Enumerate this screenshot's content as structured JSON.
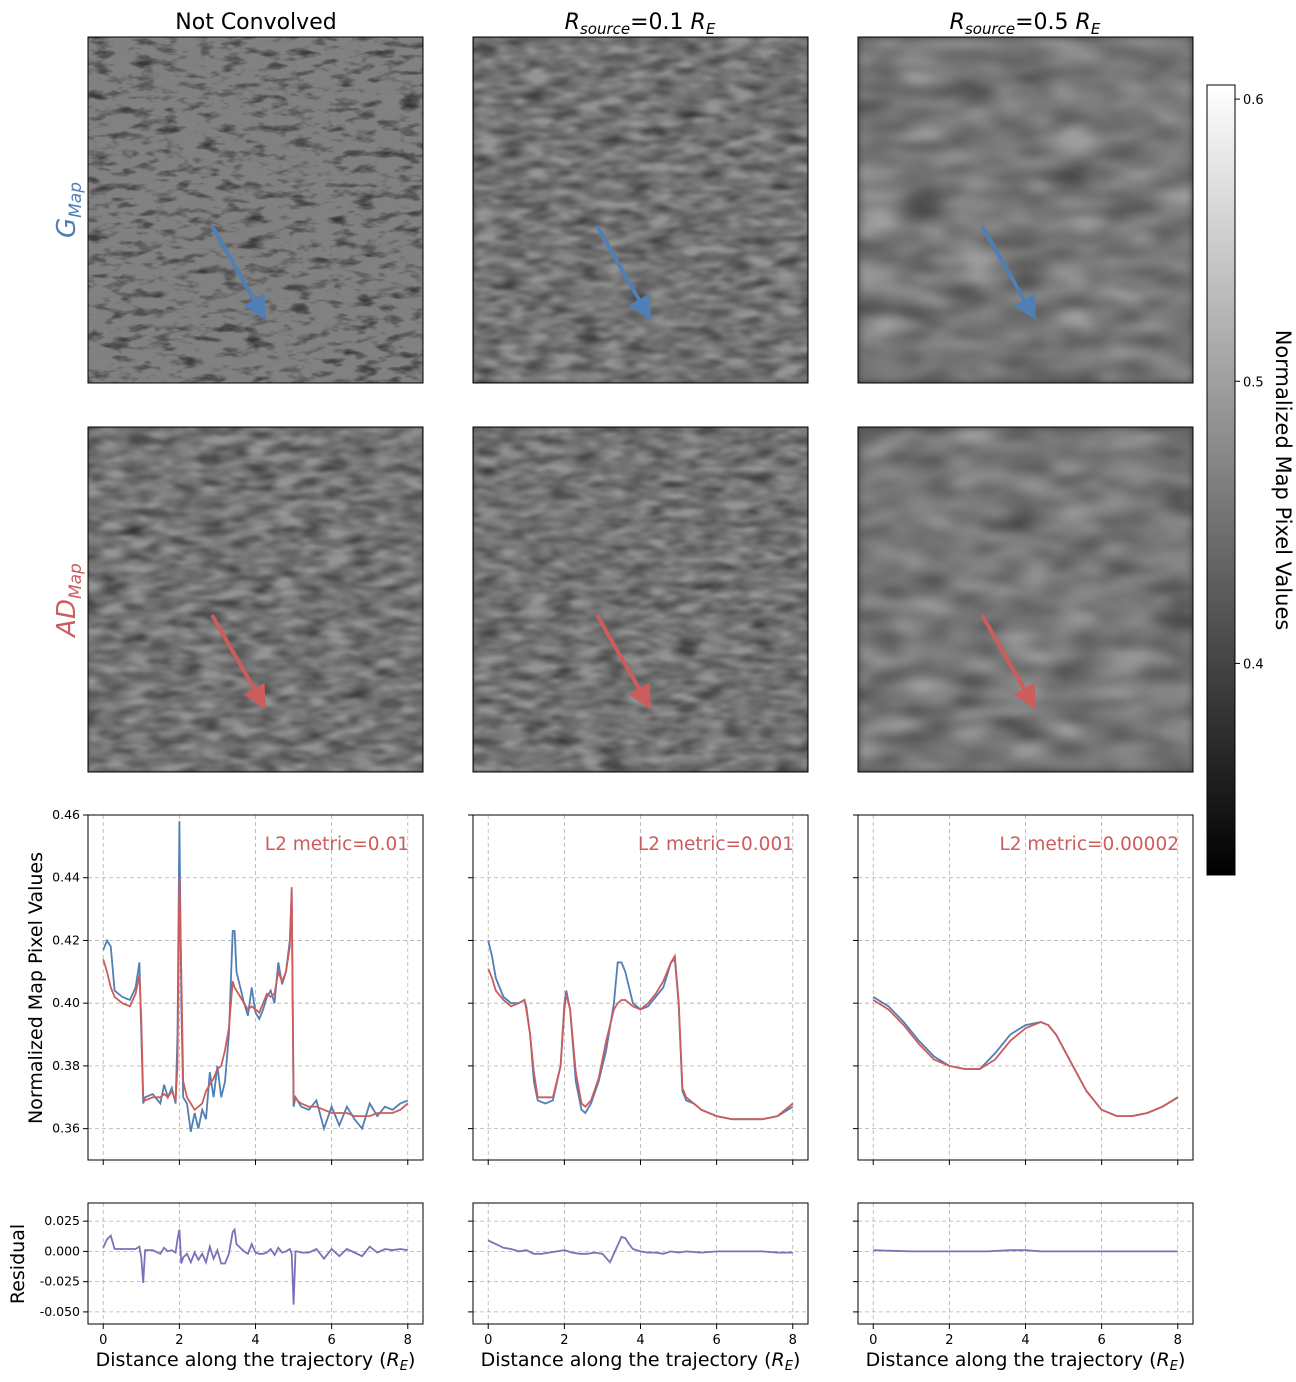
{
  "columns": [
    {
      "title": "Not Convolved",
      "title_math": null
    },
    {
      "title": "",
      "title_math": {
        "base": "R",
        "sub": "source",
        "mid": "=0.1 ",
        "base2": "R",
        "sub2": "E"
      }
    },
    {
      "title": "",
      "title_math": {
        "base": "R",
        "sub": "source",
        "mid": "=0.5 ",
        "base2": "R",
        "sub2": "E"
      }
    }
  ],
  "row_labels": {
    "g_map": {
      "base": "G",
      "sub": "Map",
      "color": "#4f7fb5"
    },
    "ad_map": {
      "base": "AD",
      "sub": "Map",
      "color": "#cd5c5c"
    }
  },
  "colorbar": {
    "label": "Normalized Map Pixel Values",
    "ticks": [
      "0.6",
      "0.5",
      "0.4"
    ],
    "tick_values": [
      0.6,
      0.5,
      0.4
    ],
    "range": [
      0.325,
      0.605
    ]
  },
  "colors": {
    "g_series": "#4f7fb5",
    "ad_series": "#cd5c5c",
    "residual": "#7a72b8",
    "annotation": "#cd5c5c"
  },
  "annotations": [
    "L2 metric=0.01",
    "L2 metric=0.001",
    "L2 metric=0.00002"
  ],
  "axes": {
    "main_ylabel": "Normalized Map Pixel Values",
    "residual_ylabel": "Residual",
    "xlabel_prefix": "Distance along the trajectory (",
    "xlabel_math": {
      "base": "R",
      "sub": "E"
    },
    "xlabel_suffix": ")",
    "main_yticks": [
      "0.46",
      "0.44",
      "0.42",
      "0.40",
      "0.38",
      "0.36"
    ],
    "residual_yticks": [
      "0.025",
      "0.000",
      "-0.025",
      "-0.050"
    ],
    "xticks": [
      "0",
      "2",
      "4",
      "6",
      "8"
    ]
  },
  "chart_data": [
    {
      "type": "line",
      "panel": "Not Convolved",
      "xlim": [
        -0.4,
        8.4
      ],
      "ylim": [
        0.35,
        0.46
      ],
      "grid": true,
      "series": [
        {
          "x": [
            0,
            0.1,
            0.2,
            0.3,
            0.5,
            0.7,
            0.85,
            0.95,
            1.0,
            1.05,
            1.1,
            1.3,
            1.5,
            1.6,
            1.7,
            1.8,
            1.9,
            1.95,
            2.0,
            2.05,
            2.1,
            2.2,
            2.3,
            2.4,
            2.5,
            2.6,
            2.7,
            2.8,
            2.9,
            3.0,
            3.1,
            3.2,
            3.3,
            3.4,
            3.45,
            3.5,
            3.6,
            3.7,
            3.8,
            3.9,
            4.0,
            4.1,
            4.2,
            4.3,
            4.4,
            4.5,
            4.6,
            4.7,
            4.8,
            4.9,
            4.95,
            5.0,
            5.05,
            5.1,
            5.2,
            5.4,
            5.6,
            5.8,
            6.0,
            6.2,
            6.4,
            6.6,
            6.8,
            7.0,
            7.2,
            7.4,
            7.6,
            7.8,
            8.0
          ],
          "values": [
            0.417,
            0.42,
            0.418,
            0.404,
            0.402,
            0.401,
            0.405,
            0.413,
            0.39,
            0.368,
            0.37,
            0.371,
            0.368,
            0.374,
            0.37,
            0.373,
            0.368,
            0.39,
            0.458,
            0.4,
            0.37,
            0.368,
            0.359,
            0.365,
            0.36,
            0.366,
            0.363,
            0.378,
            0.37,
            0.38,
            0.37,
            0.375,
            0.39,
            0.423,
            0.423,
            0.41,
            0.405,
            0.4,
            0.396,
            0.405,
            0.397,
            0.395,
            0.398,
            0.402,
            0.404,
            0.4,
            0.413,
            0.406,
            0.41,
            0.42,
            0.435,
            0.367,
            0.37,
            0.369,
            0.367,
            0.366,
            0.369,
            0.36,
            0.367,
            0.361,
            0.367,
            0.363,
            0.36,
            0.368,
            0.364,
            0.367,
            0.366,
            0.368,
            0.369
          ]
        },
        {
          "x": [
            0,
            0.1,
            0.2,
            0.3,
            0.5,
            0.7,
            0.85,
            0.95,
            1.0,
            1.05,
            1.1,
            1.3,
            1.5,
            1.6,
            1.7,
            1.8,
            1.9,
            1.95,
            2.0,
            2.05,
            2.1,
            2.2,
            2.3,
            2.4,
            2.5,
            2.6,
            2.7,
            2.8,
            2.9,
            3.0,
            3.1,
            3.2,
            3.3,
            3.4,
            3.45,
            3.5,
            3.6,
            3.7,
            3.8,
            3.9,
            4.0,
            4.1,
            4.2,
            4.3,
            4.4,
            4.5,
            4.6,
            4.7,
            4.8,
            4.9,
            4.95,
            5.0,
            5.05,
            5.1,
            5.2,
            5.4,
            5.6,
            5.8,
            6.0,
            6.2,
            6.4,
            6.6,
            6.8,
            7.0,
            7.2,
            7.4,
            7.6,
            7.8,
            8.0
          ],
          "values": [
            0.414,
            0.41,
            0.405,
            0.402,
            0.4,
            0.399,
            0.403,
            0.409,
            0.395,
            0.37,
            0.369,
            0.37,
            0.37,
            0.371,
            0.37,
            0.372,
            0.369,
            0.38,
            0.44,
            0.41,
            0.375,
            0.37,
            0.368,
            0.366,
            0.367,
            0.368,
            0.372,
            0.374,
            0.376,
            0.379,
            0.38,
            0.385,
            0.392,
            0.407,
            0.405,
            0.404,
            0.402,
            0.4,
            0.398,
            0.399,
            0.398,
            0.397,
            0.4,
            0.403,
            0.402,
            0.403,
            0.41,
            0.407,
            0.41,
            0.418,
            0.437,
            0.369,
            0.37,
            0.369,
            0.368,
            0.367,
            0.367,
            0.366,
            0.365,
            0.365,
            0.365,
            0.364,
            0.364,
            0.364,
            0.365,
            0.365,
            0.365,
            0.366,
            0.368
          ]
        }
      ],
      "residual": {
        "ylim": [
          -0.06,
          0.04
        ],
        "x": [
          0,
          0.1,
          0.2,
          0.3,
          0.5,
          0.7,
          0.85,
          0.95,
          1.0,
          1.05,
          1.1,
          1.3,
          1.5,
          1.6,
          1.7,
          1.8,
          1.9,
          1.95,
          2.0,
          2.05,
          2.1,
          2.2,
          2.3,
          2.4,
          2.5,
          2.6,
          2.7,
          2.8,
          2.9,
          3.0,
          3.1,
          3.2,
          3.3,
          3.4,
          3.45,
          3.5,
          3.6,
          3.7,
          3.8,
          3.9,
          4.0,
          4.1,
          4.2,
          4.3,
          4.4,
          4.5,
          4.6,
          4.7,
          4.8,
          4.9,
          4.95,
          5.0,
          5.05,
          5.1,
          5.2,
          5.4,
          5.6,
          5.8,
          6.0,
          6.2,
          6.4,
          6.6,
          6.8,
          7.0,
          7.2,
          7.4,
          7.6,
          7.8,
          8.0
        ],
        "values": [
          0.003,
          0.01,
          0.013,
          0.002,
          0.002,
          0.002,
          0.002,
          0.004,
          -0.005,
          -0.026,
          0.001,
          0.001,
          -0.002,
          0.003,
          0.0,
          0.001,
          -0.001,
          0.01,
          0.018,
          -0.01,
          -0.005,
          -0.002,
          -0.009,
          -0.001,
          -0.007,
          -0.002,
          -0.009,
          0.004,
          -0.006,
          0.001,
          -0.01,
          -0.01,
          -0.002,
          0.016,
          0.018,
          0.006,
          0.003,
          0.0,
          -0.002,
          0.006,
          -0.001,
          -0.002,
          -0.002,
          -0.001,
          0.002,
          -0.003,
          0.003,
          -0.001,
          0.0,
          0.002,
          -0.002,
          -0.044,
          0.0,
          0.0,
          -0.001,
          -0.001,
          0.002,
          -0.006,
          0.002,
          -0.004,
          0.002,
          -0.001,
          -0.004,
          0.004,
          -0.001,
          0.002,
          0.001,
          0.002,
          0.001
        ],
        "min_value": -0.06
      }
    },
    {
      "type": "line",
      "panel": "Rsource=0.1 RE",
      "xlim": [
        -0.4,
        8.4
      ],
      "ylim": [
        0.35,
        0.46
      ],
      "grid": true,
      "series": [
        {
          "x": [
            0,
            0.1,
            0.2,
            0.4,
            0.6,
            0.8,
            0.95,
            1.0,
            1.1,
            1.2,
            1.3,
            1.5,
            1.7,
            1.9,
            2.0,
            2.05,
            2.15,
            2.3,
            2.45,
            2.55,
            2.7,
            2.9,
            3.1,
            3.3,
            3.4,
            3.5,
            3.6,
            3.7,
            3.8,
            4.0,
            4.2,
            4.4,
            4.6,
            4.8,
            4.9,
            5.0,
            5.1,
            5.2,
            5.4,
            5.6,
            6.0,
            6.4,
            6.8,
            7.2,
            7.6,
            8.0
          ],
          "values": [
            0.42,
            0.415,
            0.408,
            0.402,
            0.4,
            0.4,
            0.401,
            0.399,
            0.39,
            0.375,
            0.369,
            0.368,
            0.369,
            0.38,
            0.4,
            0.404,
            0.398,
            0.375,
            0.366,
            0.365,
            0.368,
            0.375,
            0.385,
            0.4,
            0.413,
            0.413,
            0.41,
            0.405,
            0.4,
            0.398,
            0.399,
            0.402,
            0.405,
            0.413,
            0.414,
            0.4,
            0.372,
            0.369,
            0.368,
            0.366,
            0.364,
            0.363,
            0.363,
            0.363,
            0.364,
            0.367
          ]
        },
        {
          "x": [
            0,
            0.1,
            0.2,
            0.4,
            0.6,
            0.8,
            0.95,
            1.0,
            1.1,
            1.2,
            1.3,
            1.5,
            1.7,
            1.9,
            2.0,
            2.05,
            2.15,
            2.3,
            2.45,
            2.55,
            2.7,
            2.9,
            3.1,
            3.3,
            3.4,
            3.5,
            3.6,
            3.7,
            3.8,
            4.0,
            4.2,
            4.4,
            4.6,
            4.8,
            4.9,
            5.0,
            5.1,
            5.2,
            5.4,
            5.6,
            6.0,
            6.4,
            6.8,
            7.2,
            7.6,
            8.0
          ],
          "values": [
            0.411,
            0.408,
            0.404,
            0.401,
            0.399,
            0.4,
            0.401,
            0.398,
            0.39,
            0.378,
            0.37,
            0.37,
            0.37,
            0.38,
            0.398,
            0.403,
            0.398,
            0.378,
            0.368,
            0.367,
            0.369,
            0.376,
            0.388,
            0.398,
            0.4,
            0.401,
            0.401,
            0.4,
            0.399,
            0.398,
            0.4,
            0.403,
            0.407,
            0.413,
            0.415,
            0.401,
            0.373,
            0.37,
            0.368,
            0.366,
            0.364,
            0.363,
            0.363,
            0.363,
            0.364,
            0.368
          ]
        }
      ],
      "residual": {
        "ylim": [
          -0.06,
          0.04
        ],
        "x": [
          0,
          0.2,
          0.4,
          0.6,
          0.8,
          1.0,
          1.2,
          1.4,
          1.6,
          1.8,
          2.0,
          2.2,
          2.4,
          2.6,
          2.8,
          3.0,
          3.2,
          3.4,
          3.5,
          3.6,
          3.7,
          3.8,
          4.0,
          4.2,
          4.4,
          4.6,
          4.8,
          5.0,
          5.2,
          5.6,
          6.0,
          6.4,
          6.8,
          7.2,
          7.6,
          8.0
        ],
        "values": [
          0.009,
          0.006,
          0.003,
          0.002,
          0.0,
          0.001,
          -0.002,
          -0.002,
          -0.001,
          0.0,
          0.001,
          -0.001,
          -0.002,
          -0.002,
          -0.001,
          -0.002,
          -0.009,
          0.005,
          0.012,
          0.011,
          0.006,
          0.002,
          0.0,
          -0.001,
          -0.001,
          -0.002,
          0.0,
          -0.001,
          0.0,
          -0.001,
          0.0,
          0.0,
          0.0,
          0.0,
          -0.001,
          -0.001
        ]
      }
    },
    {
      "type": "line",
      "panel": "Rsource=0.5 RE",
      "xlim": [
        -0.4,
        8.4
      ],
      "ylim": [
        0.35,
        0.46
      ],
      "grid": true,
      "series": [
        {
          "x": [
            0,
            0.4,
            0.8,
            1.2,
            1.6,
            2.0,
            2.4,
            2.8,
            3.2,
            3.6,
            4.0,
            4.4,
            4.6,
            4.8,
            5.2,
            5.6,
            6.0,
            6.4,
            6.8,
            7.2,
            7.6,
            8.0
          ],
          "values": [
            0.402,
            0.399,
            0.394,
            0.388,
            0.383,
            0.38,
            0.379,
            0.379,
            0.384,
            0.39,
            0.393,
            0.394,
            0.393,
            0.39,
            0.381,
            0.372,
            0.366,
            0.364,
            0.364,
            0.365,
            0.367,
            0.37
          ]
        },
        {
          "x": [
            0,
            0.4,
            0.8,
            1.2,
            1.6,
            2.0,
            2.4,
            2.8,
            3.2,
            3.6,
            4.0,
            4.4,
            4.6,
            4.8,
            5.2,
            5.6,
            6.0,
            6.4,
            6.8,
            7.2,
            7.6,
            8.0
          ],
          "values": [
            0.401,
            0.398,
            0.393,
            0.387,
            0.382,
            0.38,
            0.379,
            0.379,
            0.382,
            0.388,
            0.392,
            0.394,
            0.393,
            0.39,
            0.381,
            0.372,
            0.366,
            0.364,
            0.364,
            0.365,
            0.367,
            0.37
          ]
        }
      ],
      "residual": {
        "ylim": [
          -0.06,
          0.04
        ],
        "x": [
          0,
          1,
          2,
          3,
          3.6,
          4,
          4.4,
          5,
          6,
          7,
          8
        ],
        "values": [
          0.001,
          0.0,
          0.0,
          0.0,
          0.001,
          0.001,
          0.0,
          0.0,
          0.0,
          0.0,
          0.0
        ]
      }
    }
  ]
}
